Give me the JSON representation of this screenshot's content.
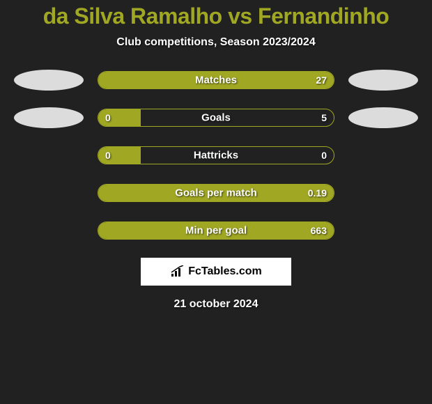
{
  "title": "da Silva Ramalho vs Fernandinho",
  "subtitle": "Club competitions, Season 2023/2024",
  "date": "21 october 2024",
  "logo_text": "FcTables.com",
  "colors": {
    "background": "#212121",
    "accent": "#a0a723",
    "text": "#ffffff",
    "ellipse": "#dcdcdc"
  },
  "stats": [
    {
      "label": "Matches",
      "left_value": "",
      "right_value": "27",
      "left_pct": 0,
      "right_pct": 100,
      "show_left_ellipse": true,
      "show_right_ellipse": true,
      "full_fill": true
    },
    {
      "label": "Goals",
      "left_value": "0",
      "right_value": "5",
      "left_pct": 18,
      "right_pct": 0,
      "show_left_ellipse": true,
      "show_right_ellipse": true,
      "full_fill": false
    },
    {
      "label": "Hattricks",
      "left_value": "0",
      "right_value": "0",
      "left_pct": 18,
      "right_pct": 0,
      "show_left_ellipse": false,
      "show_right_ellipse": false,
      "full_fill": false
    },
    {
      "label": "Goals per match",
      "left_value": "",
      "right_value": "0.19",
      "left_pct": 0,
      "right_pct": 100,
      "show_left_ellipse": false,
      "show_right_ellipse": false,
      "full_fill": true
    },
    {
      "label": "Min per goal",
      "left_value": "",
      "right_value": "663",
      "left_pct": 0,
      "right_pct": 100,
      "show_left_ellipse": false,
      "show_right_ellipse": false,
      "full_fill": true
    }
  ]
}
